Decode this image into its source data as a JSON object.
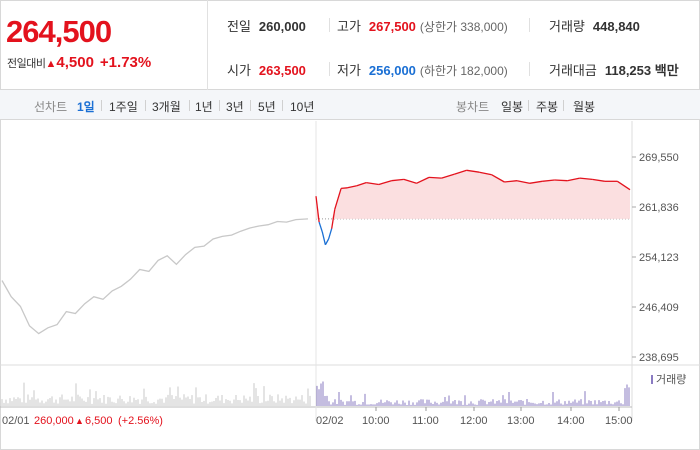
{
  "quote": {
    "price": "264,500",
    "change_label": "전일대비",
    "change_arrow": "▲",
    "change_value": "4,500",
    "change_pct": "+1.73%"
  },
  "stats": {
    "prev_close_label": "전일",
    "prev_close": "260,000",
    "high_label": "고가",
    "high": "267,500",
    "upper_limit": "(상한가 338,000)",
    "volume_label": "거래량",
    "volume": "448,840",
    "open_label": "시가",
    "open": "263,500",
    "low_label": "저가",
    "low": "256,000",
    "lower_limit": "(하한가 182,000)",
    "amount_label": "거래대금",
    "amount": "118,253 백만"
  },
  "toolbar": {
    "line_chart_label": "선차트",
    "line_periods": [
      "1일",
      "1주일",
      "3개월",
      "1년",
      "3년",
      "5년",
      "10년"
    ],
    "selected_period": "1일",
    "candle_chart_label": "봉차트",
    "candle_periods": [
      "일봉",
      "주봉",
      "월봉"
    ]
  },
  "chart_data": {
    "type": "line",
    "y_ticks": [
      "269,550",
      "261,836",
      "254,123",
      "246,409",
      "238,695"
    ],
    "ylim": [
      238695,
      269550
    ],
    "reference_price": 260000,
    "volume_legend": "거래량",
    "x_ticks": [
      "02/02",
      "10:00",
      "11:00",
      "12:00",
      "13:00",
      "14:00",
      "15:00"
    ],
    "prev_day_summary": {
      "date": "02/01",
      "close": "260,000",
      "arrow": "▲",
      "change": "6,500",
      "change_pct": "(+2.56%)"
    },
    "prev_day_series": {
      "x": [
        0.0,
        0.03,
        0.06,
        0.09,
        0.12,
        0.15,
        0.18,
        0.21,
        0.24,
        0.27,
        0.3,
        0.33,
        0.36,
        0.39,
        0.42,
        0.45,
        0.48,
        0.51,
        0.54,
        0.57,
        0.6,
        0.63,
        0.66,
        0.69,
        0.72,
        0.75,
        0.78,
        0.81,
        0.84,
        0.87,
        0.9,
        0.93,
        0.96,
        1.0
      ],
      "values": [
        250500,
        248000,
        246500,
        243500,
        242300,
        243200,
        243700,
        245700,
        245400,
        246900,
        248000,
        247600,
        248900,
        249600,
        250700,
        252200,
        251900,
        253600,
        254300,
        253000,
        254500,
        255600,
        255800,
        256900,
        257300,
        257500,
        258100,
        258600,
        258900,
        259100,
        259600,
        259500,
        259900,
        260000
      ]
    },
    "today_series": {
      "x": [
        0.0,
        0.01,
        0.02,
        0.03,
        0.04,
        0.05,
        0.06,
        0.08,
        0.1,
        0.13,
        0.16,
        0.2,
        0.24,
        0.28,
        0.32,
        0.36,
        0.4,
        0.44,
        0.48,
        0.52,
        0.56,
        0.6,
        0.64,
        0.68,
        0.72,
        0.76,
        0.8,
        0.84,
        0.88,
        0.92,
        0.96,
        1.0
      ],
      "values": [
        263500,
        259500,
        258000,
        256000,
        256900,
        258500,
        261500,
        264700,
        264800,
        265100,
        265600,
        265300,
        265900,
        266100,
        265500,
        266400,
        266300,
        266900,
        267500,
        267200,
        266800,
        265700,
        265900,
        265500,
        265800,
        266000,
        265900,
        266300,
        266100,
        265800,
        265800,
        264500
      ]
    },
    "colors": {
      "up": "#e3121d",
      "down": "#1a6fd4",
      "prev_line": "#c8c8c8",
      "fill": "#fbdfe0",
      "volume": "#8a7bc2"
    }
  }
}
